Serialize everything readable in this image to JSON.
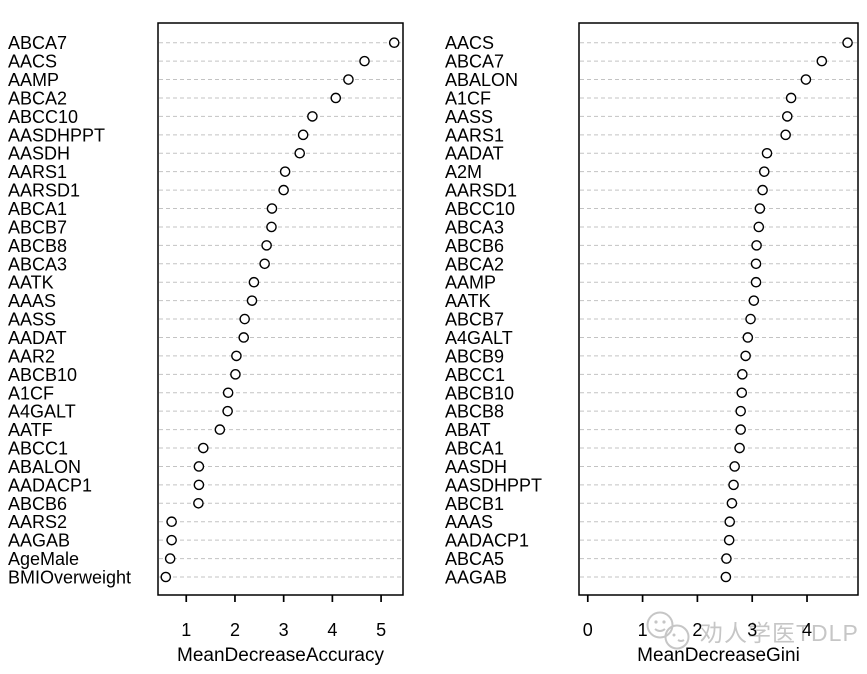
{
  "figure": {
    "background": "#ffffff"
  },
  "watermark": {
    "text": "劝人学医TDLP",
    "icon": "smiley-face-icon",
    "color": "#c6c6c6"
  },
  "style": {
    "dot_fill": "#ffffff",
    "dot_stroke": "#000000",
    "grid_color": "#c3c3c3",
    "axis_color": "#000000",
    "text_color": "#000000"
  },
  "chart_data": [
    {
      "type": "scatter",
      "variant": "dotchart",
      "title": "",
      "xlabel": "MeanDecreaseAccuracy",
      "ylabel": "",
      "xlim": [
        0.42,
        5.45
      ],
      "xticks": [
        1,
        2,
        3,
        4,
        5
      ],
      "grid": "horizontal-dashed",
      "legend": "none",
      "categories": [
        "ABCA7",
        "AACS",
        "AAMP",
        "ABCA2",
        "ABCC10",
        "AASDHPPT",
        "AASDH",
        "AARS1",
        "AARSD1",
        "ABCA1",
        "ABCB7",
        "ABCB8",
        "ABCA3",
        "AATK",
        "AAAS",
        "AASS",
        "AADAT",
        "AAR2",
        "ABCB10",
        "A1CF",
        "A4GALT",
        "AATF",
        "ABCC1",
        "ABALON",
        "AADACP1",
        "ABCB6",
        "AARS2",
        "AAGAB",
        "AgeMale",
        "BMIOverweight"
      ],
      "values": [
        5.27,
        4.66,
        4.33,
        4.07,
        3.59,
        3.4,
        3.33,
        3.03,
        3.0,
        2.76,
        2.75,
        2.65,
        2.61,
        2.39,
        2.35,
        2.2,
        2.18,
        2.03,
        2.01,
        1.86,
        1.85,
        1.69,
        1.35,
        1.26,
        1.26,
        1.25,
        0.7,
        0.7,
        0.67,
        0.58
      ]
    },
    {
      "type": "scatter",
      "variant": "dotchart",
      "title": "",
      "xlabel": "MeanDecreaseGini",
      "ylabel": "",
      "xlim": [
        -0.16,
        4.93
      ],
      "xticks": [
        0,
        1,
        2,
        3,
        4
      ],
      "grid": "horizontal-dashed",
      "legend": "none",
      "categories": [
        "AACS",
        "ABCA7",
        "ABALON",
        "A1CF",
        "AASS",
        "AARS1",
        "AADAT",
        "A2M",
        "AARSD1",
        "ABCC10",
        "ABCA3",
        "ABCB6",
        "ABCA2",
        "AAMP",
        "AATK",
        "ABCB7",
        "A4GALT",
        "ABCB9",
        "ABCC1",
        "ABCB10",
        "ABCB8",
        "ABAT",
        "ABCA1",
        "AASDH",
        "AASDHPPT",
        "ABCB1",
        "AAAS",
        "AADACP1",
        "ABCA5",
        "AAGAB"
      ],
      "values": [
        4.74,
        4.27,
        3.98,
        3.71,
        3.64,
        3.61,
        3.27,
        3.22,
        3.19,
        3.14,
        3.12,
        3.08,
        3.07,
        3.07,
        3.03,
        2.97,
        2.92,
        2.88,
        2.82,
        2.81,
        2.79,
        2.79,
        2.77,
        2.68,
        2.66,
        2.63,
        2.59,
        2.58,
        2.53,
        2.52
      ]
    }
  ]
}
